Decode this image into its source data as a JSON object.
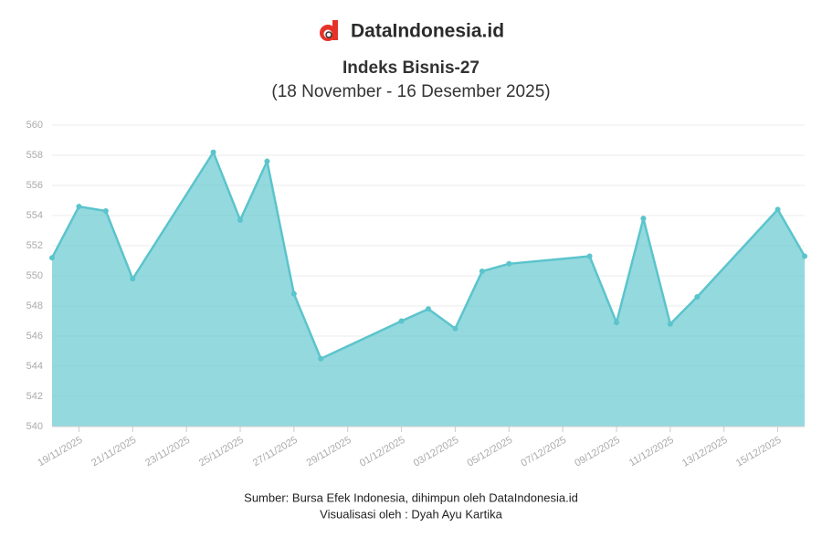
{
  "header": {
    "brand": "DataIndonesia.id"
  },
  "chart_data": {
    "type": "area",
    "title": "Indeks Bisnis-27",
    "subtitle": "(18 November - 16 Desember 2025)",
    "x": [
      "18/11/2025",
      "19/11/2025",
      "20/11/2025",
      "21/11/2025",
      "24/11/2025",
      "25/11/2025",
      "26/11/2025",
      "27/11/2025",
      "28/11/2025",
      "01/12/2025",
      "02/12/2025",
      "03/12/2025",
      "04/12/2025",
      "05/12/2025",
      "08/12/2025",
      "09/12/2025",
      "10/12/2025",
      "11/12/2025",
      "12/12/2025",
      "15/12/2025",
      "16/12/2025"
    ],
    "values": [
      551.2,
      554.6,
      554.3,
      549.8,
      558.2,
      553.7,
      557.6,
      548.8,
      544.5,
      547.0,
      547.8,
      546.5,
      550.3,
      550.8,
      551.3,
      546.9,
      553.8,
      546.8,
      548.6,
      554.4,
      551.3
    ],
    "color": "#5bc4cc",
    "xlim": [
      "18/11/2025",
      "16/12/2025"
    ],
    "xticks": [
      "19/11/2025",
      "21/11/2025",
      "23/11/2025",
      "25/11/2025",
      "27/11/2025",
      "29/11/2025",
      "01/12/2025",
      "03/12/2025",
      "05/12/2025",
      "07/12/2025",
      "09/12/2025",
      "11/12/2025",
      "13/12/2025",
      "15/12/2025"
    ],
    "ylim": [
      540,
      560
    ],
    "yticks": [
      540,
      542,
      544,
      546,
      548,
      550,
      552,
      554,
      556,
      558,
      560
    ],
    "grid": true
  },
  "footer": {
    "source": "Sumber: Bursa Efek Indonesia, dihimpun oleh DataIndonesia.id",
    "credit": "Visualisasi oleh : Dyah Ayu Kartika"
  }
}
